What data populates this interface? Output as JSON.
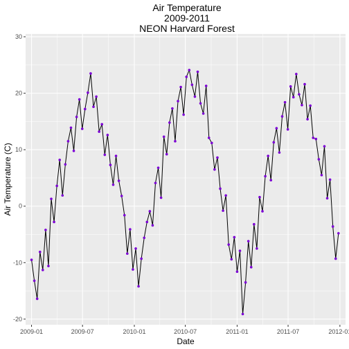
{
  "chart_data": {
    "type": "line",
    "title_lines": [
      "Air Temperature",
      "2009-2011",
      "NEON Harvard Forest"
    ],
    "xlabel": "Date",
    "ylabel": "Air Temperature (C)",
    "ylim": [
      -21,
      30.5
    ],
    "xlim": [
      "2008-12-11",
      "2012-01-21"
    ],
    "y_ticks": [
      -20,
      -10,
      0,
      10,
      20,
      30
    ],
    "x_ticks": [
      "2009-01",
      "2009-07",
      "2010-01",
      "2010-07",
      "2011-01",
      "2011-07",
      "2012-01"
    ],
    "grid": true,
    "legend": "none",
    "colors": {
      "panel": "#ebebeb",
      "grid": "#ffffff",
      "line": "#000000",
      "point": "#7b00d4",
      "tick": "#333333"
    },
    "series": [
      {
        "x": [
          "2009-01-01",
          "2009-01-11",
          "2009-01-21",
          "2009-01-31",
          "2009-02-10",
          "2009-02-20",
          "2009-03-02",
          "2009-03-12",
          "2009-03-22",
          "2009-04-01",
          "2009-04-11",
          "2009-04-21",
          "2009-05-01",
          "2009-05-11",
          "2009-05-21",
          "2009-05-31",
          "2009-06-10",
          "2009-06-20",
          "2009-06-30",
          "2009-07-10",
          "2009-07-20",
          "2009-07-30",
          "2009-08-09",
          "2009-08-19",
          "2009-08-29",
          "2009-09-08",
          "2009-09-18",
          "2009-09-28",
          "2009-10-08",
          "2009-10-18",
          "2009-10-28",
          "2009-11-07",
          "2009-11-17",
          "2009-11-27",
          "2009-12-07",
          "2009-12-17",
          "2009-12-27",
          "2010-01-06",
          "2010-01-16",
          "2010-01-26",
          "2010-02-05",
          "2010-02-15",
          "2010-02-25",
          "2010-03-07",
          "2010-03-17",
          "2010-03-27",
          "2010-04-06",
          "2010-04-16",
          "2010-04-26",
          "2010-05-06",
          "2010-05-16",
          "2010-05-26",
          "2010-06-05",
          "2010-06-15",
          "2010-06-25",
          "2010-07-05",
          "2010-07-15",
          "2010-07-25",
          "2010-08-04",
          "2010-08-14",
          "2010-08-24",
          "2010-09-03",
          "2010-09-13",
          "2010-09-23",
          "2010-10-03",
          "2010-10-13",
          "2010-10-23",
          "2010-11-02",
          "2010-11-12",
          "2010-11-22",
          "2010-12-02",
          "2010-12-12",
          "2010-12-22",
          "2011-01-01",
          "2011-01-11",
          "2011-01-21",
          "2011-01-31",
          "2011-02-10",
          "2011-02-20",
          "2011-03-02",
          "2011-03-12",
          "2011-03-22",
          "2011-04-01",
          "2011-04-11",
          "2011-04-21",
          "2011-05-01",
          "2011-05-11",
          "2011-05-21",
          "2011-05-31",
          "2011-06-10",
          "2011-06-20",
          "2011-06-30",
          "2011-07-10",
          "2011-07-20",
          "2011-07-30",
          "2011-08-09",
          "2011-08-19",
          "2011-08-29",
          "2011-09-08",
          "2011-09-18",
          "2011-09-28",
          "2011-10-08",
          "2011-10-18",
          "2011-10-28",
          "2011-11-07",
          "2011-11-17",
          "2011-11-27",
          "2011-12-07",
          "2011-12-17",
          "2011-12-27"
        ],
        "y": [
          -9.5,
          -13.2,
          -16.4,
          -8.1,
          -11.3,
          -4.2,
          -10.6,
          1.3,
          -2.8,
          3.6,
          8.2,
          1.9,
          7.4,
          11.5,
          13.9,
          9.8,
          15.8,
          18.9,
          13.7,
          17.2,
          20.1,
          23.5,
          17.6,
          19.4,
          13.2,
          14.5,
          9.1,
          12.6,
          7.3,
          3.8,
          8.9,
          4.5,
          1.8,
          -1.6,
          -8.4,
          -4.1,
          -11.2,
          -7.5,
          -14.2,
          -9.3,
          -5.6,
          -2.8,
          -0.9,
          -3.4,
          4.1,
          6.8,
          1.5,
          12.3,
          9.2,
          14.8,
          17.3,
          11.5,
          18.6,
          21.1,
          16.2,
          22.9,
          24.1,
          21.5,
          19.4,
          23.8,
          18.2,
          16.4,
          21.3,
          12.1,
          11.2,
          6.5,
          8.6,
          3.1,
          -0.8,
          1.9,
          -6.8,
          -9.4,
          -5.5,
          -11.6,
          -7.9,
          -19.1,
          -13.5,
          -6.2,
          -10.8,
          -3.2,
          -7.5,
          1.6,
          -0.9,
          5.3,
          8.9,
          4.6,
          11.3,
          13.8,
          9.5,
          15.9,
          18.4,
          13.6,
          21.2,
          19.3,
          23.4,
          19.8,
          17.9,
          21.6,
          15.4,
          17.8,
          12.1,
          11.9,
          8.3,
          5.5,
          10.6,
          1.4,
          4.7,
          -3.6,
          -9.3,
          -4.8
        ]
      }
    ]
  }
}
